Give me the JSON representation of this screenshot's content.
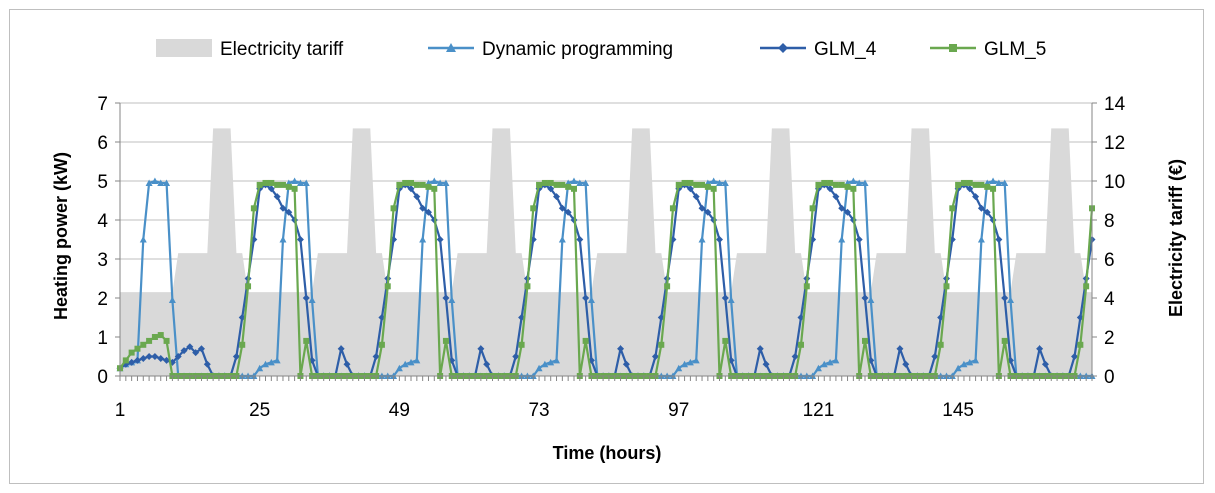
{
  "chart_data": {
    "type": "line",
    "title": "",
    "xlabel": "Time (hours)",
    "ylabel": "Heating power (kW)",
    "y2label": "Electricity tariff (€)",
    "x_ticks": [
      1,
      25,
      49,
      73,
      97,
      121,
      145
    ],
    "xlim": [
      1,
      168
    ],
    "ylim": [
      0,
      7
    ],
    "y_ticks": [
      0,
      1,
      2,
      3,
      4,
      5,
      6,
      7
    ],
    "y2lim": [
      0,
      14
    ],
    "y2_ticks": [
      0,
      2,
      4,
      6,
      8,
      10,
      12,
      14
    ],
    "grid": "horizontal",
    "legend_position": "top",
    "colors": {
      "tariff": "#d9d9d9",
      "dp": "#4a90c8",
      "glm4": "#2e5ea8",
      "glm5": "#6aa84f"
    },
    "series": [
      {
        "name": "Electricity tariff",
        "kind": "area",
        "axis": "right",
        "daily_profile": [
          4.3,
          4.3,
          4.3,
          4.3,
          4.3,
          4.3,
          4.3,
          4.3,
          4.3,
          4.3,
          6.3,
          6.3,
          6.3,
          6.3,
          6.3,
          6.3,
          12.7,
          12.7,
          12.7,
          12.7,
          6.3,
          6.3,
          4.3,
          4.3
        ],
        "days": 7
      },
      {
        "name": "Dynamic programming",
        "kind": "line",
        "marker": "triangle",
        "axis": "left",
        "daily_profile": [
          0.2,
          0.3,
          0.35,
          0.4,
          3.5,
          4.95,
          5.0,
          4.95,
          4.95,
          1.95,
          0,
          0,
          0,
          0,
          0,
          0,
          0,
          0,
          0,
          0,
          0,
          0,
          0,
          0
        ],
        "days": 7,
        "shift": 0
      },
      {
        "name": "GLM_4",
        "kind": "line",
        "marker": "diamond",
        "axis": "left"
      },
      {
        "name": "GLM_5",
        "kind": "line",
        "marker": "square",
        "axis": "left"
      }
    ]
  }
}
